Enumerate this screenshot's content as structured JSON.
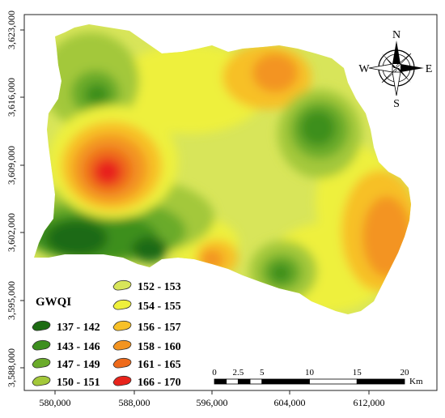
{
  "map": {
    "x_ticks": [
      "580,000",
      "588,000",
      "596,000",
      "604,000",
      "612,000"
    ],
    "y_ticks": [
      "3,623,000",
      "3,616,000",
      "3,609,000",
      "3,602,000",
      "3,595,000",
      "3,588,000"
    ]
  },
  "legend": {
    "title": "GWQI",
    "classes": [
      {
        "label": "137 - 142",
        "color": "#1d6b12"
      },
      {
        "label": "143 - 146",
        "color": "#3d8f1f"
      },
      {
        "label": "147 - 149",
        "color": "#6aab2a"
      },
      {
        "label": "150 - 151",
        "color": "#a3c83a"
      },
      {
        "label": "152 - 153",
        "color": "#d8e55a"
      },
      {
        "label": "154 - 155",
        "color": "#eef03c"
      },
      {
        "label": "156 - 157",
        "color": "#f7c028"
      },
      {
        "label": "158 - 160",
        "color": "#f39420"
      },
      {
        "label": "161 - 165",
        "color": "#ee6a1a"
      },
      {
        "label": "166 - 170",
        "color": "#e8231b"
      }
    ]
  },
  "scale_bar": {
    "ticks": [
      "0",
      "2.5",
      "5",
      "10",
      "15",
      "20"
    ],
    "unit": "Km"
  },
  "north_arrow": {
    "N": "N",
    "S": "S",
    "E": "E",
    "W": "W"
  }
}
